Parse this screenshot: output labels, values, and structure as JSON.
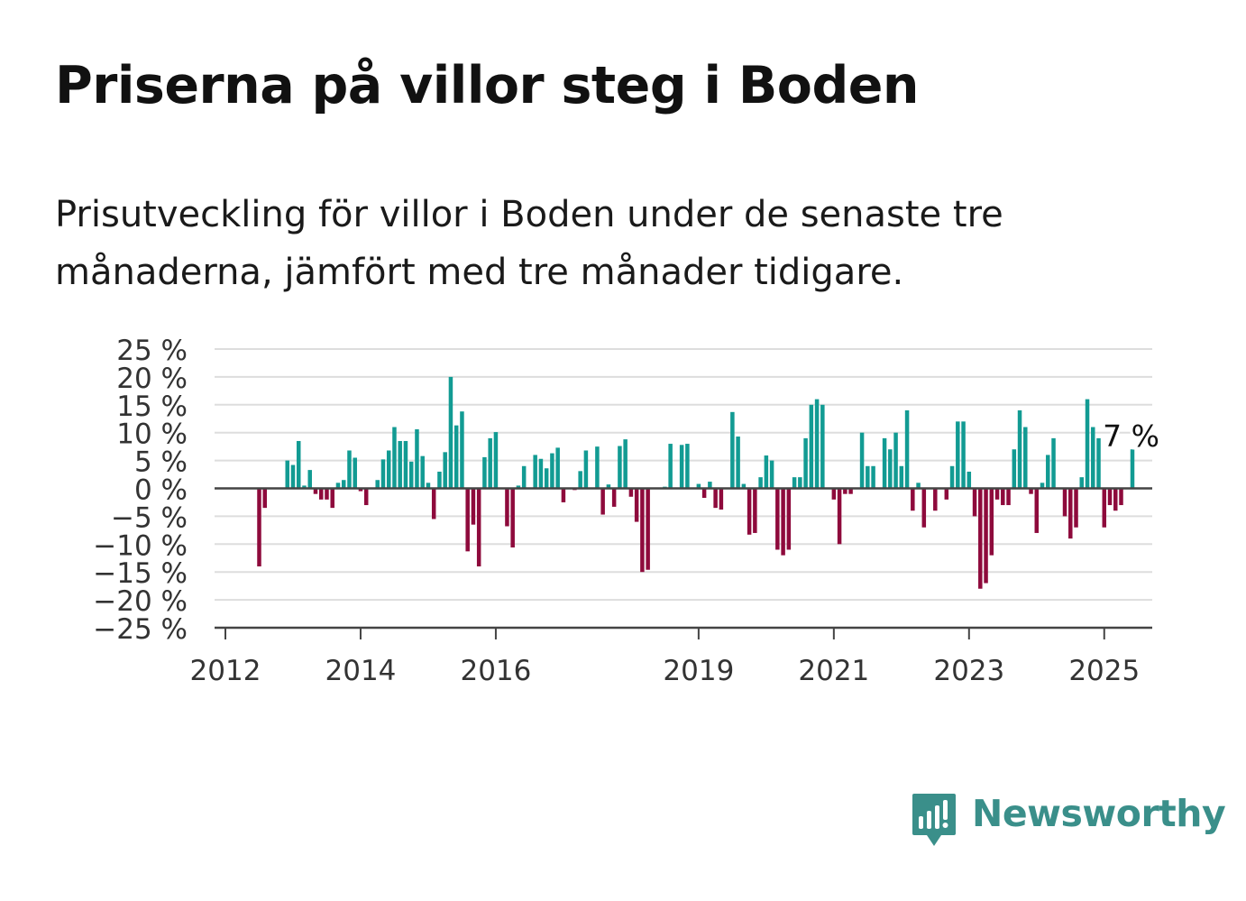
{
  "title": "Priserna på villor steg i Boden",
  "subtitle": "Prisutveckling för villor i Boden under de senaste tre månaderna, jämfört med tre månader tidigare.",
  "brand": {
    "name": "Newsworthy",
    "color": "#3a8f8a",
    "icon": "bar-chart-logo-icon"
  },
  "colors": {
    "positive": "#129b93",
    "negative": "#8e0a3c",
    "grid": "#dddddd",
    "axis": "#444444"
  },
  "chart_data": {
    "type": "bar",
    "x_start": "2012-01",
    "x_step_months": 1,
    "y_ticks": [
      {
        "value": 25,
        "label": "25 %"
      },
      {
        "value": 20,
        "label": "20 %"
      },
      {
        "value": 15,
        "label": "15 %"
      },
      {
        "value": 10,
        "label": "10 %"
      },
      {
        "value": 5,
        "label": "5 %"
      },
      {
        "value": 0,
        "label": "0 %"
      },
      {
        "value": -5,
        "label": "−5 %"
      },
      {
        "value": -10,
        "label": "−10 %"
      },
      {
        "value": -15,
        "label": "−15 %"
      },
      {
        "value": -20,
        "label": "−20 %"
      },
      {
        "value": -25,
        "label": "−25 %"
      }
    ],
    "x_ticks": [
      {
        "date": "2012-01",
        "label": "2012"
      },
      {
        "date": "2014-01",
        "label": "2014"
      },
      {
        "date": "2016-01",
        "label": "2016"
      },
      {
        "date": "2019-01",
        "label": "2019"
      },
      {
        "date": "2021-01",
        "label": "2021"
      },
      {
        "date": "2023-01",
        "label": "2023"
      },
      {
        "date": "2025-01",
        "label": "2025"
      }
    ],
    "ylim": [
      -25,
      25
    ],
    "grid": true,
    "annotation": {
      "text": "7 %",
      "date": "2025-01"
    },
    "values": [
      0,
      0,
      0,
      0,
      0,
      0,
      -14,
      -3.5,
      0,
      0,
      0,
      5,
      4.2,
      8.5,
      0.5,
      3.3,
      -1,
      -2,
      -2,
      -3.5,
      1,
      1.5,
      6.8,
      5.5,
      -0.5,
      -3,
      0,
      1.5,
      5.2,
      6.8,
      11,
      8.5,
      8.5,
      4.8,
      10.6,
      5.8,
      1,
      -5.5,
      3,
      6.5,
      20,
      11.3,
      13.8,
      -11.3,
      -6.5,
      -14,
      5.6,
      9,
      10.1,
      0,
      -6.8,
      -10.6,
      0.5,
      4,
      0,
      6,
      5.3,
      3.6,
      6.3,
      7.3,
      -2.5,
      0,
      -0.3,
      3.1,
      6.8,
      0,
      7.5,
      -4.7,
      0.7,
      -3.3,
      7.6,
      8.8,
      -1.5,
      -6,
      -15,
      -14.6,
      0,
      0,
      0.3,
      8,
      0,
      7.8,
      8,
      0,
      0.8,
      -1.7,
      1.2,
      -3.5,
      -3.8,
      0,
      13.7,
      9.3,
      0.8,
      -8.3,
      -8,
      2,
      5.9,
      5,
      -11,
      -12,
      -11,
      2,
      2,
      9,
      15,
      16,
      15,
      0,
      -2,
      -10,
      -1,
      -1,
      0,
      10,
      4,
      4,
      0,
      9,
      7,
      10,
      4,
      14,
      -4,
      1,
      -7,
      0,
      -4,
      0,
      -2,
      4,
      12,
      12,
      3,
      -5,
      -18,
      -17,
      -12,
      -2,
      -3,
      -3,
      7,
      14,
      11,
      -1,
      -8,
      1,
      6,
      9,
      0,
      -5,
      -9,
      -7,
      2,
      16,
      11,
      9,
      -7,
      -3,
      -4,
      -3,
      0,
      7
    ]
  }
}
